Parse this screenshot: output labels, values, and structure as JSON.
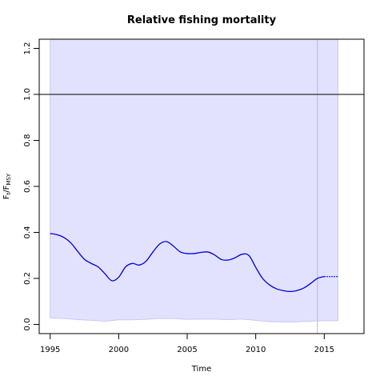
{
  "chart_data": {
    "type": "line",
    "title": "Relative fishing mortality",
    "xlabel": "Time",
    "ylabel": {
      "main": "F",
      "sub1": "t",
      "mid": "/F",
      "sub2": "MSY"
    },
    "xlim": [
      1994.2,
      2017.9
    ],
    "ylim": [
      -0.04,
      1.24
    ],
    "x_ticks": [
      "1995",
      "2000",
      "2005",
      "2010",
      "2015"
    ],
    "y_ticks": [
      "0.0",
      "0.2",
      "0.4",
      "0.6",
      "0.8",
      "1.0",
      "1.2"
    ],
    "reference_line": {
      "y": 1.0,
      "color": "#000000"
    },
    "current_time_line": {
      "x": 2014.5,
      "color": "#bbbbcc"
    },
    "band": {
      "color": "#e2e2ff",
      "edge_color": "#c8c8f0",
      "upper_value": 1.24,
      "x_start": 1995,
      "x_end": 2016,
      "lower": [
        [
          1995,
          0.028
        ],
        [
          1996,
          0.026
        ],
        [
          1997,
          0.021
        ],
        [
          1998,
          0.018
        ],
        [
          1999,
          0.014
        ],
        [
          2000,
          0.02
        ],
        [
          2001,
          0.02
        ],
        [
          2002,
          0.022
        ],
        [
          2003,
          0.026
        ],
        [
          2004,
          0.025
        ],
        [
          2005,
          0.022
        ],
        [
          2006,
          0.023
        ],
        [
          2007,
          0.023
        ],
        [
          2008,
          0.021
        ],
        [
          2009,
          0.023
        ],
        [
          2010,
          0.018
        ],
        [
          2011,
          0.012
        ],
        [
          2012,
          0.01
        ],
        [
          2013,
          0.011
        ],
        [
          2014,
          0.014
        ],
        [
          2015,
          0.016
        ],
        [
          2016,
          0.016
        ]
      ]
    },
    "series": [
      {
        "color": "#0000dd",
        "style": "solid",
        "points": [
          [
            1995,
            0.395
          ],
          [
            1995.5,
            0.39
          ],
          [
            1996,
            0.378
          ],
          [
            1996.5,
            0.355
          ],
          [
            1997,
            0.318
          ],
          [
            1997.5,
            0.283
          ],
          [
            1998,
            0.265
          ],
          [
            1998.5,
            0.25
          ],
          [
            1999,
            0.22
          ],
          [
            1999.5,
            0.19
          ],
          [
            2000,
            0.205
          ],
          [
            2000.5,
            0.25
          ],
          [
            2001,
            0.265
          ],
          [
            2001.5,
            0.258
          ],
          [
            2002,
            0.275
          ],
          [
            2002.5,
            0.315
          ],
          [
            2003,
            0.35
          ],
          [
            2003.5,
            0.36
          ],
          [
            2004,
            0.34
          ],
          [
            2004.5,
            0.315
          ],
          [
            2005,
            0.308
          ],
          [
            2005.5,
            0.308
          ],
          [
            2006,
            0.313
          ],
          [
            2006.5,
            0.315
          ],
          [
            2007,
            0.302
          ],
          [
            2007.5,
            0.282
          ],
          [
            2008,
            0.28
          ],
          [
            2008.5,
            0.29
          ],
          [
            2009,
            0.305
          ],
          [
            2009.5,
            0.3
          ],
          [
            2010,
            0.248
          ],
          [
            2010.5,
            0.2
          ],
          [
            2011,
            0.172
          ],
          [
            2011.5,
            0.155
          ],
          [
            2012,
            0.147
          ],
          [
            2012.5,
            0.143
          ],
          [
            2013,
            0.147
          ],
          [
            2013.5,
            0.158
          ],
          [
            2014,
            0.178
          ],
          [
            2014.5,
            0.2
          ],
          [
            2015,
            0.208
          ]
        ]
      },
      {
        "color": "#0000dd",
        "style": "dotted",
        "points": [
          [
            2015,
            0.208
          ],
          [
            2016,
            0.208
          ]
        ]
      }
    ]
  }
}
